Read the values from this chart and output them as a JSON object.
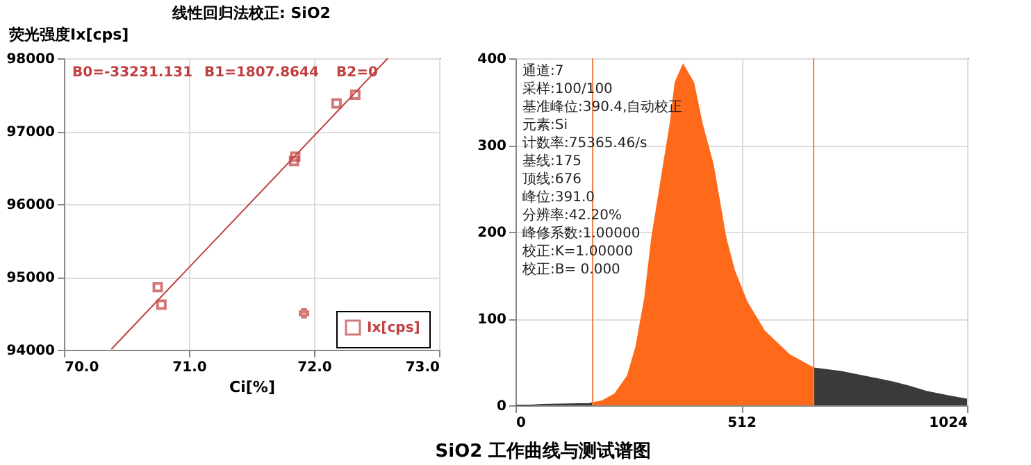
{
  "chart_data": [
    {
      "type": "scatter",
      "title": "线性回归法校正: SiO2",
      "xlabel": "Ci[%]",
      "ylabel": "荧光强度Ix[cps]",
      "annotations": [
        "B0=-33231.131",
        "B1=1807.8644",
        "B2=0"
      ],
      "series": [
        {
          "name": "Ix[cps]",
          "type": "scatter",
          "marker": "square",
          "color": "#c04040",
          "x": [
            70.75,
            70.78,
            71.84,
            71.85,
            72.18,
            72.33
          ],
          "values": [
            94860,
            94620,
            96590,
            96650,
            97380,
            97500
          ]
        },
        {
          "type": "line",
          "color": "#c04040",
          "x": [
            70.38,
            72.59
          ],
          "values": [
            94010,
            98000
          ]
        },
        {
          "type": "scatter",
          "marker": "cross",
          "color": "#c04040",
          "x": [
            71.92
          ],
          "values": [
            94500
          ]
        }
      ],
      "xlim": [
        70,
        73
      ],
      "ylim": [
        94000,
        98000
      ],
      "xticks": [
        {
          "value": 70,
          "label": "70.0"
        },
        {
          "value": 71,
          "label": "71.0"
        },
        {
          "value": 72,
          "label": "72.0"
        },
        {
          "value": 73,
          "label": "73.0"
        }
      ],
      "yticks": [
        94000,
        95000,
        96000,
        97000,
        98000
      ],
      "grid": true,
      "legend": "bottom right"
    },
    {
      "type": "area",
      "annotations": [
        "通道:7",
        "采样:100/100",
        "基准峰位:390.4,自动校正",
        "元素:Si",
        "计数率:75365.46/s",
        "基线:175",
        "顶线:676",
        "峰位:391.0",
        "分辨率:42.20%",
        "峰修系数:1.00000",
        "校正:K=1.00000",
        "校正:B=  0.000"
      ],
      "series": [
        {
          "color": "#3a3a3a",
          "x": [
            0,
            31,
            60,
            168,
            175
          ],
          "values": [
            0,
            0,
            1,
            2,
            3
          ]
        },
        {
          "color": "#ff6a1a",
          "x": [
            175,
            196,
            225,
            254,
            273,
            293,
            309,
            336,
            351,
            362,
            380,
            404,
            423,
            448,
            477,
            496,
            525,
            564,
            622,
            676
          ],
          "values": [
            3,
            5,
            13,
            34,
            67,
            123,
            193,
            278,
            325,
            372,
            393,
            372,
            325,
            278,
            193,
            156,
            119,
            86,
            58,
            43
          ]
        },
        {
          "color": "#3a3a3a",
          "x": [
            676,
            738,
            797,
            855,
            893,
            932,
            981,
            1024
          ],
          "values": [
            43,
            39,
            33,
            27,
            22,
            16,
            11,
            7
          ]
        }
      ],
      "ref_lines": [
        {
          "axis": "x",
          "value": 175,
          "color": "#f08040"
        },
        {
          "axis": "x",
          "value": 676,
          "color": "#f08040"
        }
      ],
      "xlim": [
        0,
        1024
      ],
      "ylim": [
        0,
        400
      ],
      "xticks": [
        0,
        512,
        1024
      ],
      "yticks": [
        0,
        100,
        200,
        300,
        400
      ],
      "grid": true
    },
    {
      "type": "other",
      "title": "SiO2 工作曲线与测试谱图"
    }
  ]
}
